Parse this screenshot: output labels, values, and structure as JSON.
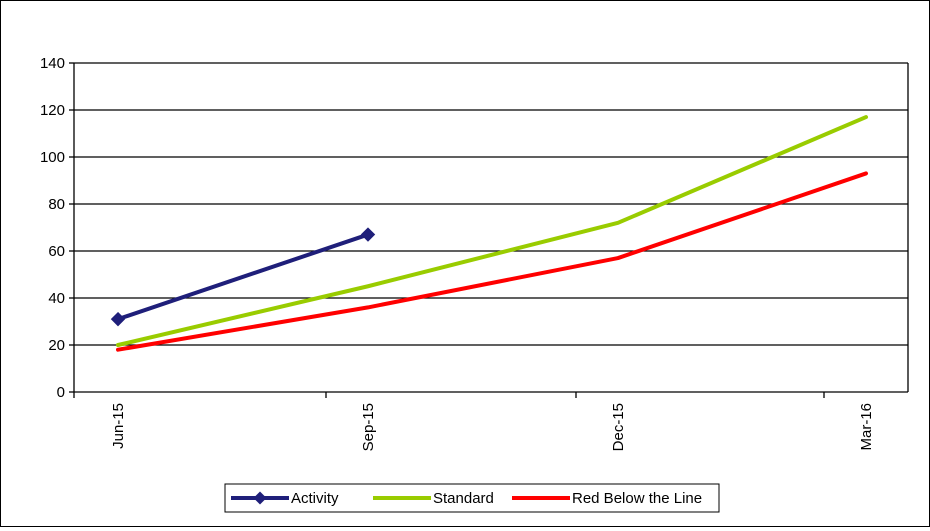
{
  "chart_data": {
    "type": "line",
    "title": "",
    "xlabel": "",
    "ylabel": "",
    "categories": [
      "Jun-15",
      "Sep-15",
      "Dec-15",
      "Mar-16"
    ],
    "ylim": [
      0,
      140
    ],
    "yticks": [
      0,
      20,
      40,
      60,
      80,
      100,
      120,
      140
    ],
    "grid": "horizontal",
    "legend_position": "bottom",
    "series": [
      {
        "name": "Activity",
        "values": [
          31,
          67,
          null,
          null
        ],
        "color": "#1f1f7a",
        "marker": "diamond"
      },
      {
        "name": "Standard",
        "values": [
          20,
          45,
          72,
          117
        ],
        "color": "#99cc00",
        "marker": "none"
      },
      {
        "name": "Red Below the Line",
        "values": [
          18,
          36,
          57,
          93
        ],
        "color": "#ff0000",
        "marker": "none"
      }
    ]
  }
}
